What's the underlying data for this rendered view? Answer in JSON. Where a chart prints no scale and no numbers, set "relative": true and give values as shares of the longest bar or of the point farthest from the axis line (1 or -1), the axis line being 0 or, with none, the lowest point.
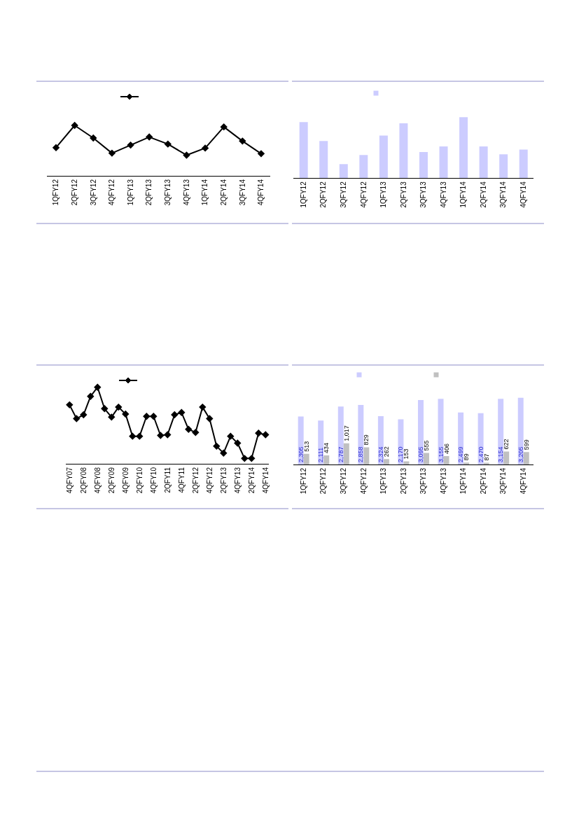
{
  "chart_data": [
    {
      "type": "line",
      "relative": true,
      "categories": [
        "1QFY12",
        "2QFY12",
        "3QFY12",
        "4QFY12",
        "1QFY13",
        "2QFY13",
        "3QFY13",
        "4QFY13",
        "1QFY14",
        "2QFY14",
        "3QFY14",
        "4QFY14"
      ],
      "series": [
        {
          "color": "#000000",
          "values": [
            0.56,
            1.0,
            0.75,
            0.45,
            0.61,
            0.77,
            0.63,
            0.41,
            0.55,
            0.97,
            0.69,
            0.44
          ]
        }
      ],
      "marker": "diamond",
      "line_style": "solid"
    },
    {
      "type": "bar",
      "relative": true,
      "categories": [
        "1QFY12",
        "2QFY12",
        "3QFY12",
        "4QFY12",
        "1QFY13",
        "2QFY13",
        "3QFY13",
        "4QFY13",
        "1QFY14",
        "2QFY14",
        "3QFY14",
        "4QFY14"
      ],
      "series": [
        {
          "color": "#ccccff",
          "values": [
            0.92,
            0.61,
            0.23,
            0.38,
            0.7,
            0.9,
            0.43,
            0.52,
            1.0,
            0.52,
            0.39,
            0.47
          ]
        }
      ]
    },
    {
      "type": "line",
      "relative": true,
      "categories": [
        "4QFY07",
        null,
        "2QFY08",
        null,
        "4QFY08",
        null,
        "2QFY09",
        null,
        "4QFY09",
        null,
        "2QFY10",
        null,
        "4QFY10",
        null,
        "2QFY11",
        null,
        "4QFY11",
        null,
        "2QFY12",
        null,
        "4QFY12",
        null,
        "2QFY13",
        null,
        "4QFY13",
        null,
        "2QFY14",
        null,
        "4QFY14"
      ],
      "series": [
        {
          "color": "#000000",
          "values": [
            0.77,
            0.59,
            0.64,
            0.88,
            1.0,
            0.72,
            0.61,
            0.74,
            0.65,
            0.36,
            0.36,
            0.62,
            0.62,
            0.37,
            0.38,
            0.64,
            0.67,
            0.45,
            0.41,
            0.74,
            0.59,
            0.23,
            0.14,
            0.36,
            0.27,
            0.07,
            0.07,
            0.4,
            0.38
          ]
        }
      ],
      "marker": "diamond",
      "line_style": "solid"
    },
    {
      "type": "bar",
      "categories": [
        "1QFY12",
        "2QFY12",
        "3QFY12",
        "4QFY12",
        "1QFY13",
        "2QFY13",
        "3QFY13",
        "4QFY13",
        "1QFY14",
        "2QFY14",
        "3QFY14",
        "4QFY14"
      ],
      "series": [
        {
          "color": "#ccccff",
          "values": [
            2305,
            2111,
            2787,
            2858,
            2324,
            2170,
            3095,
            3155,
            2499,
            2470,
            3154,
            3205
          ],
          "value_labels": [
            "2,305",
            "2,111",
            "2,787",
            "2,858",
            "2,324",
            "2,170",
            "3,095",
            "3,155",
            "2,499",
            "2,470",
            "3,154",
            "3,205"
          ]
        },
        {
          "color": "#c0c0c0",
          "values": [
            513,
            434,
            1017,
            829,
            262,
            153,
            555,
            406,
            89,
            87,
            622,
            599
          ],
          "value_labels": [
            "513",
            "434",
            "1,017",
            "829",
            "262",
            "153",
            "555",
            "406",
            "89",
            "87",
            "622",
            "599"
          ]
        }
      ],
      "tick_labels": "x"
    }
  ]
}
